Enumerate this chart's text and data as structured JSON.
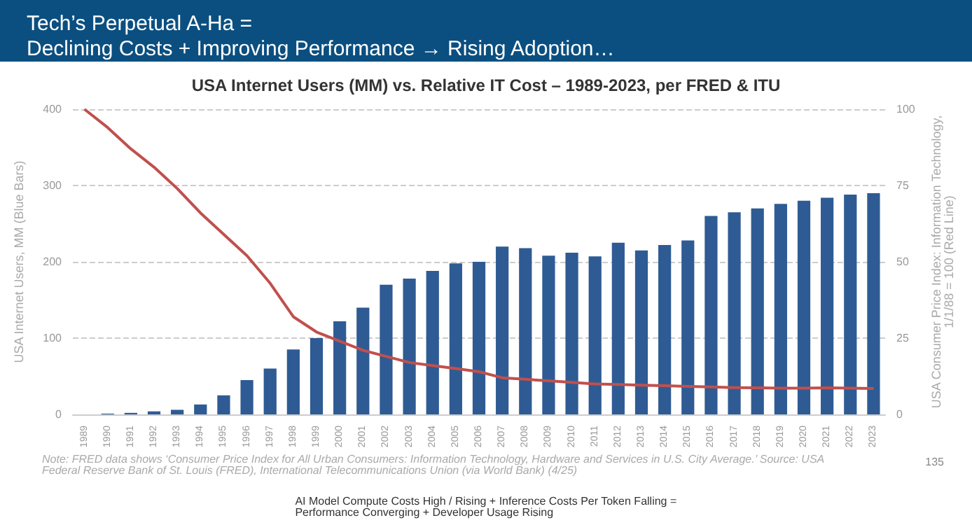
{
  "chart_data": {
    "type": "bar",
    "title": "Tech’s Perpetual A-Ha =\nDeclining Costs + Improving Performance → Rising Adoption…",
    "subtitle": "USA Internet Users (MM) vs. Relative IT Cost – 1989-2023, per FRED & ITU",
    "ylabel": "USA Internet Users, MM (Blue Bars)",
    "y2label": "USA Consumer Price Index: Information Technology,\n1/1/88 = 100 (Red Line)",
    "categories": [
      "1989",
      "1990",
      "1991",
      "1992",
      "1993",
      "1994",
      "1995",
      "1996",
      "1997",
      "1998",
      "1999",
      "2000",
      "2001",
      "2002",
      "2003",
      "2004",
      "2005",
      "2006",
      "2007",
      "2008",
      "2009",
      "2010",
      "2011",
      "2012",
      "2013",
      "2014",
      "2015",
      "2016",
      "2017",
      "2018",
      "2019",
      "2020",
      "2021",
      "2022",
      "2023"
    ],
    "series": [
      {
        "color": "#2f5b94",
        "values": [
          0,
          1,
          2,
          4,
          6,
          13,
          25,
          45,
          60,
          85,
          100,
          122,
          140,
          170,
          178,
          188,
          198,
          200,
          220,
          218,
          208,
          212,
          207,
          225,
          215,
          222,
          228,
          260,
          265,
          270,
          276,
          280,
          284,
          288,
          290
        ]
      },
      {
        "type": "line",
        "axis": "y2",
        "color": "#c0504d",
        "values": [
          100,
          94,
          87,
          81,
          74,
          66,
          59,
          52,
          43,
          32,
          27,
          24,
          21,
          19,
          17,
          16,
          15,
          14,
          12,
          11.5,
          11,
          10.5,
          10,
          9.8,
          9.6,
          9.4,
          9.2,
          9,
          8.8,
          8.7,
          8.6,
          8.6,
          8.7,
          8.6,
          8.5
        ]
      }
    ],
    "ylim": [
      0,
      400
    ],
    "yticks": [
      0,
      100,
      200,
      300,
      400
    ],
    "y2lim": [
      0,
      100
    ],
    "y2ticks": [
      0,
      25,
      50,
      75,
      100
    ],
    "grid": "y",
    "marker": "none",
    "annotations": [
      "Note: FRED data shows ‘Consumer Price Index for All Urban Consumers: Information Technology, Hardware and Services in U.S. City Average.’ Source: USA Federal Reserve Bank of St. Louis (FRED), International Telecommunications Union (via World Bank) (4/25)",
      "135",
      "AI Model Compute Costs High / Rising + Inference Costs Per Token Falling =\nPerformance Converging + Developer Usage Rising"
    ]
  }
}
